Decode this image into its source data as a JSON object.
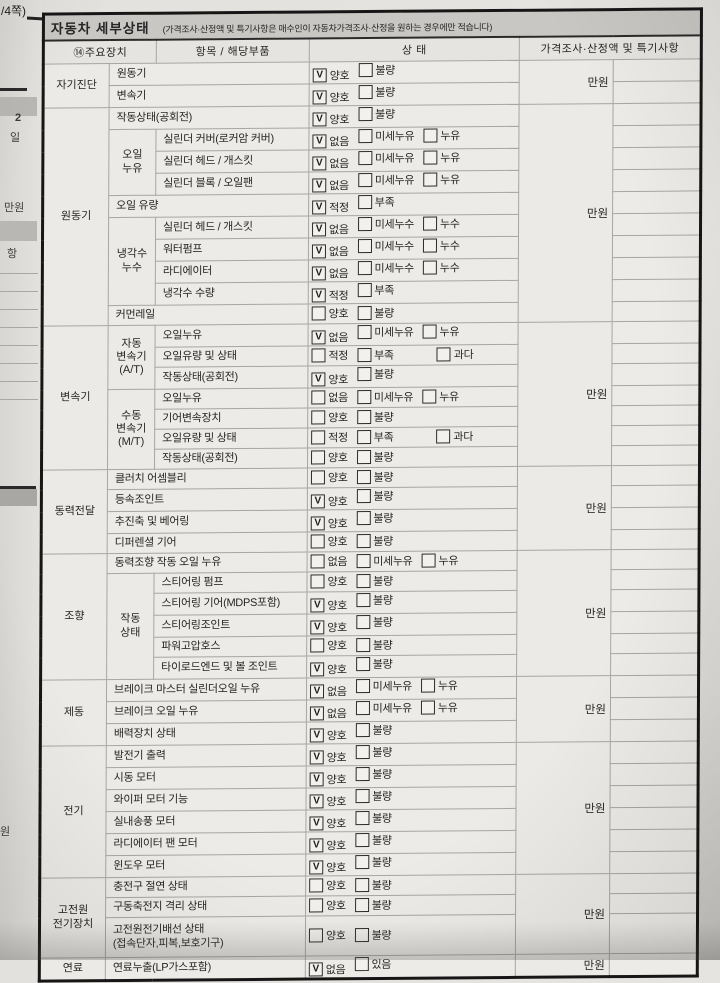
{
  "page_label": "/4쪽)",
  "left_strip": {
    "fragments": [
      "2",
      "일",
      "만원",
      "항",
      "원"
    ]
  },
  "title": {
    "main": "자동차 세부상태",
    "note": "(가격조사·산정액 및 특기사항은 매수인이 자동차가격조사·산정을 원하는 경우에만 적습니다)"
  },
  "header": {
    "device": "⑭주요장치",
    "item": "항목 / 해당부품",
    "state": "상 태",
    "price": "가격조사·산정액 및 특기사항"
  },
  "rows": [
    {
      "group": "자기진단",
      "group_span": 2,
      "item": "원동기",
      "item_spans_2": true,
      "options": [
        {
          "label": "양호",
          "checked": true
        },
        {
          "label": "불량",
          "checked": false
        }
      ],
      "price": "만원",
      "price_span": 2
    },
    {
      "item": "변속기",
      "item_spans_2": true,
      "options": [
        {
          "label": "양호",
          "checked": true
        },
        {
          "label": "불량",
          "checked": false
        }
      ]
    },
    {
      "group": "원동기",
      "group_span": 10,
      "item": "작동상태(공회전)",
      "item_spans_2": true,
      "options": [
        {
          "label": "양호",
          "checked": true
        },
        {
          "label": "불량",
          "checked": false
        }
      ],
      "price": "만원",
      "price_span": 10
    },
    {
      "subgroup": "오일\n누유",
      "subgroup_span": 3,
      "item": "실린더 커버(로커암 커버)",
      "options": [
        {
          "label": "없음",
          "checked": true
        },
        {
          "label": "미세누유",
          "checked": false
        },
        {
          "label": "누유",
          "checked": false
        }
      ]
    },
    {
      "item": "실린더 헤드 / 개스킷",
      "options": [
        {
          "label": "없음",
          "checked": true
        },
        {
          "label": "미세누유",
          "checked": false
        },
        {
          "label": "누유",
          "checked": false
        }
      ]
    },
    {
      "item": "실린더 블록 / 오일팬",
      "options": [
        {
          "label": "없음",
          "checked": true
        },
        {
          "label": "미세누유",
          "checked": false
        },
        {
          "label": "누유",
          "checked": false
        }
      ]
    },
    {
      "item": "오일 유량",
      "item_spans_2": true,
      "options": [
        {
          "label": "적정",
          "checked": true
        },
        {
          "label": "부족",
          "checked": false
        }
      ]
    },
    {
      "subgroup": "냉각수\n누수",
      "subgroup_span": 4,
      "item": "실린더 헤드 / 개스킷",
      "options": [
        {
          "label": "없음",
          "checked": true
        },
        {
          "label": "미세누수",
          "checked": false
        },
        {
          "label": "누수",
          "checked": false
        }
      ]
    },
    {
      "item": "워터펌프",
      "options": [
        {
          "label": "없음",
          "checked": true
        },
        {
          "label": "미세누수",
          "checked": false
        },
        {
          "label": "누수",
          "checked": false
        }
      ]
    },
    {
      "item": "라디에이터",
      "options": [
        {
          "label": "없음",
          "checked": true
        },
        {
          "label": "미세누수",
          "checked": false
        },
        {
          "label": "누수",
          "checked": false
        }
      ]
    },
    {
      "item": "냉각수 수량",
      "options": [
        {
          "label": "적정",
          "checked": true
        },
        {
          "label": "부족",
          "checked": false
        }
      ]
    },
    {
      "item": "커먼레일",
      "item_spans_2": true,
      "options": [
        {
          "label": "양호",
          "checked": false
        },
        {
          "label": "불량",
          "checked": false
        }
      ]
    },
    {
      "group": "변속기",
      "group_span": 7,
      "subgroup": "자동\n변속기\n(A/T)",
      "subgroup_span": 3,
      "item": "오일누유",
      "options": [
        {
          "label": "없음",
          "checked": true
        },
        {
          "label": "미세누유",
          "checked": false
        },
        {
          "label": "누유",
          "checked": false
        }
      ],
      "price": "만원",
      "price_span": 7
    },
    {
      "item": "오일유량 및 상태",
      "options": [
        {
          "label": "적정",
          "checked": false
        },
        {
          "label": "부족",
          "checked": false
        },
        {
          "label": "과다",
          "checked": false,
          "wide_gap": true
        }
      ]
    },
    {
      "item": "작동상태(공회전)",
      "options": [
        {
          "label": "양호",
          "checked": true
        },
        {
          "label": "불량",
          "checked": false
        }
      ]
    },
    {
      "subgroup": "수동\n변속기\n(M/T)",
      "subgroup_span": 4,
      "item": "오일누유",
      "options": [
        {
          "label": "없음",
          "checked": false
        },
        {
          "label": "미세누유",
          "checked": false
        },
        {
          "label": "누유",
          "checked": false
        }
      ]
    },
    {
      "item": "기어변속장치",
      "options": [
        {
          "label": "양호",
          "checked": false
        },
        {
          "label": "불량",
          "checked": false
        }
      ]
    },
    {
      "item": "오일유량 및 상태",
      "options": [
        {
          "label": "적정",
          "checked": false
        },
        {
          "label": "부족",
          "checked": false
        },
        {
          "label": "과다",
          "checked": false,
          "wide_gap": true
        }
      ]
    },
    {
      "item": "작동상태(공회전)",
      "options": [
        {
          "label": "양호",
          "checked": false
        },
        {
          "label": "불량",
          "checked": false
        }
      ]
    },
    {
      "group": "동력전달",
      "group_span": 4,
      "item": "클러치 어셈블리",
      "item_spans_2": true,
      "options": [
        {
          "label": "양호",
          "checked": false
        },
        {
          "label": "불량",
          "checked": false
        }
      ],
      "price": "만원",
      "price_span": 4
    },
    {
      "item": "등속조인트",
      "item_spans_2": true,
      "options": [
        {
          "label": "양호",
          "checked": true
        },
        {
          "label": "불량",
          "checked": false
        }
      ]
    },
    {
      "item": "추진축 및 베어링",
      "item_spans_2": true,
      "options": [
        {
          "label": "양호",
          "checked": true
        },
        {
          "label": "불량",
          "checked": false
        }
      ]
    },
    {
      "item": "디퍼렌셜 기어",
      "item_spans_2": true,
      "options": [
        {
          "label": "양호",
          "checked": false
        },
        {
          "label": "불량",
          "checked": false
        }
      ]
    },
    {
      "group": "조향",
      "group_span": 6,
      "item": "동력조향 작동 오일 누유",
      "item_spans_2": true,
      "options": [
        {
          "label": "없음",
          "checked": false
        },
        {
          "label": "미세누유",
          "checked": false
        },
        {
          "label": "누유",
          "checked": false
        }
      ],
      "price": "만원",
      "price_span": 6
    },
    {
      "subgroup": "작동\n상태",
      "subgroup_span": 5,
      "item": "스티어링 펌프",
      "options": [
        {
          "label": "양호",
          "checked": false
        },
        {
          "label": "불량",
          "checked": false
        }
      ]
    },
    {
      "item": "스티어링 기어(MDPS포함)",
      "options": [
        {
          "label": "양호",
          "checked": true
        },
        {
          "label": "불량",
          "checked": false
        }
      ]
    },
    {
      "item": "스티어링조인트",
      "options": [
        {
          "label": "양호",
          "checked": true
        },
        {
          "label": "불량",
          "checked": false
        }
      ]
    },
    {
      "item": "파워고압호스",
      "options": [
        {
          "label": "양호",
          "checked": false
        },
        {
          "label": "불량",
          "checked": false
        }
      ]
    },
    {
      "item": "타이로드엔드 및 볼 조인트",
      "options": [
        {
          "label": "양호",
          "checked": true
        },
        {
          "label": "불량",
          "checked": false
        }
      ]
    },
    {
      "group": "제동",
      "group_span": 3,
      "item": "브레이크 마스터 실린더오일 누유",
      "item_spans_2": true,
      "options": [
        {
          "label": "없음",
          "checked": true
        },
        {
          "label": "미세누유",
          "checked": false
        },
        {
          "label": "누유",
          "checked": false
        }
      ],
      "price": "만원",
      "price_span": 3
    },
    {
      "item": "브레이크 오일 누유",
      "item_spans_2": true,
      "options": [
        {
          "label": "없음",
          "checked": true
        },
        {
          "label": "미세누유",
          "checked": false
        },
        {
          "label": "누유",
          "checked": false
        }
      ]
    },
    {
      "item": "배력장치 상태",
      "item_spans_2": true,
      "options": [
        {
          "label": "양호",
          "checked": true
        },
        {
          "label": "불량",
          "checked": false
        }
      ]
    },
    {
      "group": "전기",
      "group_span": 6,
      "item": "발전기 출력",
      "item_spans_2": true,
      "options": [
        {
          "label": "양호",
          "checked": true
        },
        {
          "label": "불량",
          "checked": false
        }
      ],
      "price": "만원",
      "price_span": 6
    },
    {
      "item": "시동 모터",
      "item_spans_2": true,
      "options": [
        {
          "label": "양호",
          "checked": true
        },
        {
          "label": "불량",
          "checked": false
        }
      ]
    },
    {
      "item": "와이퍼 모터 기능",
      "item_spans_2": true,
      "options": [
        {
          "label": "양호",
          "checked": true
        },
        {
          "label": "불량",
          "checked": false
        }
      ]
    },
    {
      "item": "실내송풍 모터",
      "item_spans_2": true,
      "options": [
        {
          "label": "양호",
          "checked": true
        },
        {
          "label": "불량",
          "checked": false
        }
      ]
    },
    {
      "item": "라디에이터 팬 모터",
      "item_spans_2": true,
      "options": [
        {
          "label": "양호",
          "checked": true
        },
        {
          "label": "불량",
          "checked": false
        }
      ]
    },
    {
      "item": "윈도우 모터",
      "item_spans_2": true,
      "options": [
        {
          "label": "양호",
          "checked": true
        },
        {
          "label": "불량",
          "checked": false
        }
      ]
    },
    {
      "group": "고전원\n전기장치",
      "group_span": 3,
      "item": "충전구 절연 상태",
      "item_spans_2": true,
      "options": [
        {
          "label": "양호",
          "checked": false
        },
        {
          "label": "불량",
          "checked": false
        }
      ],
      "price": "만원",
      "price_span": 3
    },
    {
      "item": "구동축전지 격리 상태",
      "item_spans_2": true,
      "options": [
        {
          "label": "양호",
          "checked": false
        },
        {
          "label": "불량",
          "checked": false
        }
      ]
    },
    {
      "item": "고전원전기배선 상태\n(접속단자,피복,보호기구)",
      "item_spans_2": true,
      "tall": true,
      "options": [
        {
          "label": "양호",
          "checked": false
        },
        {
          "label": "불량",
          "checked": false
        }
      ]
    },
    {
      "group": "연료",
      "group_span": 1,
      "item": "연료누출(LP가스포함)",
      "item_spans_2": true,
      "options": [
        {
          "label": "없음",
          "checked": true
        },
        {
          "label": "있음",
          "checked": false
        }
      ],
      "price": "만원",
      "price_span": 1
    }
  ],
  "colors": {
    "paper": "#e9e7e3",
    "title_bar": "#c9c7c3",
    "line": "#a8a6a2",
    "heavy_line": "#161616",
    "ink": "#262626"
  }
}
